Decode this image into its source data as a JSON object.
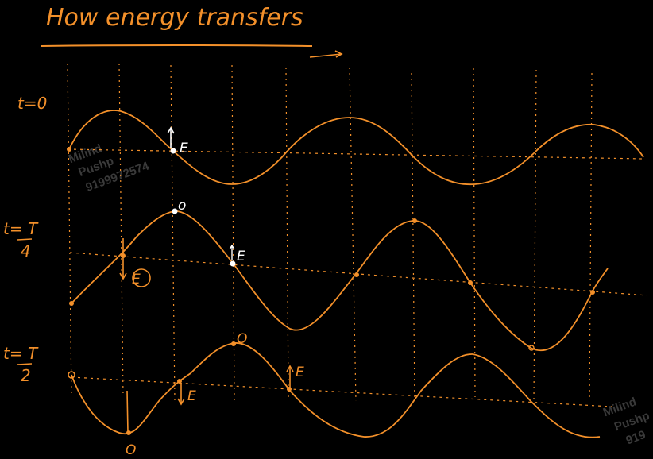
{
  "title": "How energy transfers",
  "rows": [
    {
      "time_label_top": "t=0",
      "time_label_bottom": ""
    },
    {
      "time_label_top": "t= T",
      "time_label_bottom": "4"
    },
    {
      "time_label_top": "t= T",
      "time_label_bottom": "2"
    }
  ],
  "annotations": {
    "energy_symbol": "E",
    "zero_symbol": "o",
    "zero_symbol_alt": "O"
  },
  "watermark": {
    "line1": "Milind",
    "line2": "Pushp",
    "line3": "9199972574",
    "line3_partial": "919"
  },
  "colors": {
    "background": "#000000",
    "ink": "#F3902A",
    "highlight": "#FFFFFF",
    "watermark": "#3A3A3A"
  }
}
